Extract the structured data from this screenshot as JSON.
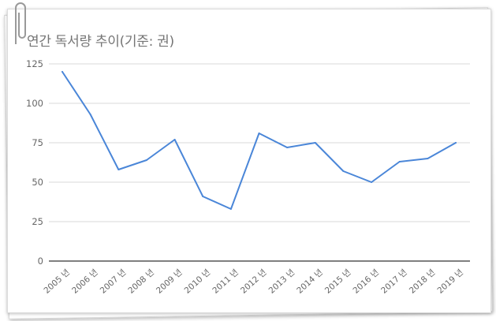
{
  "chart_data": {
    "type": "line",
    "title": "연간 독서량 추이(기준: 권)",
    "xlabel": "",
    "ylabel": "",
    "categories": [
      "2005 년",
      "2006 년",
      "2007 년",
      "2008 년",
      "2009 년",
      "2010 년",
      "2011 년",
      "2012 년",
      "2013 년",
      "2014 년",
      "2015 년",
      "2016 년",
      "2017 년",
      "2018 년",
      "2019 년"
    ],
    "series": [
      {
        "values": [
          120,
          93,
          58,
          64,
          77,
          41,
          33,
          81,
          72,
          75,
          57,
          50,
          63,
          65,
          75
        ],
        "color": "#4a86d8"
      }
    ],
    "ylim": [
      0,
      125
    ],
    "yticks": [
      0,
      25,
      50,
      75,
      100,
      125
    ],
    "grid": true,
    "legend": "none"
  },
  "colors": {
    "line": "#4a86d8",
    "grid": "#d9d9d9",
    "axis": "#333333",
    "text": "#666666",
    "title": "#757575"
  },
  "icons": [
    "paperclip-icon"
  ]
}
